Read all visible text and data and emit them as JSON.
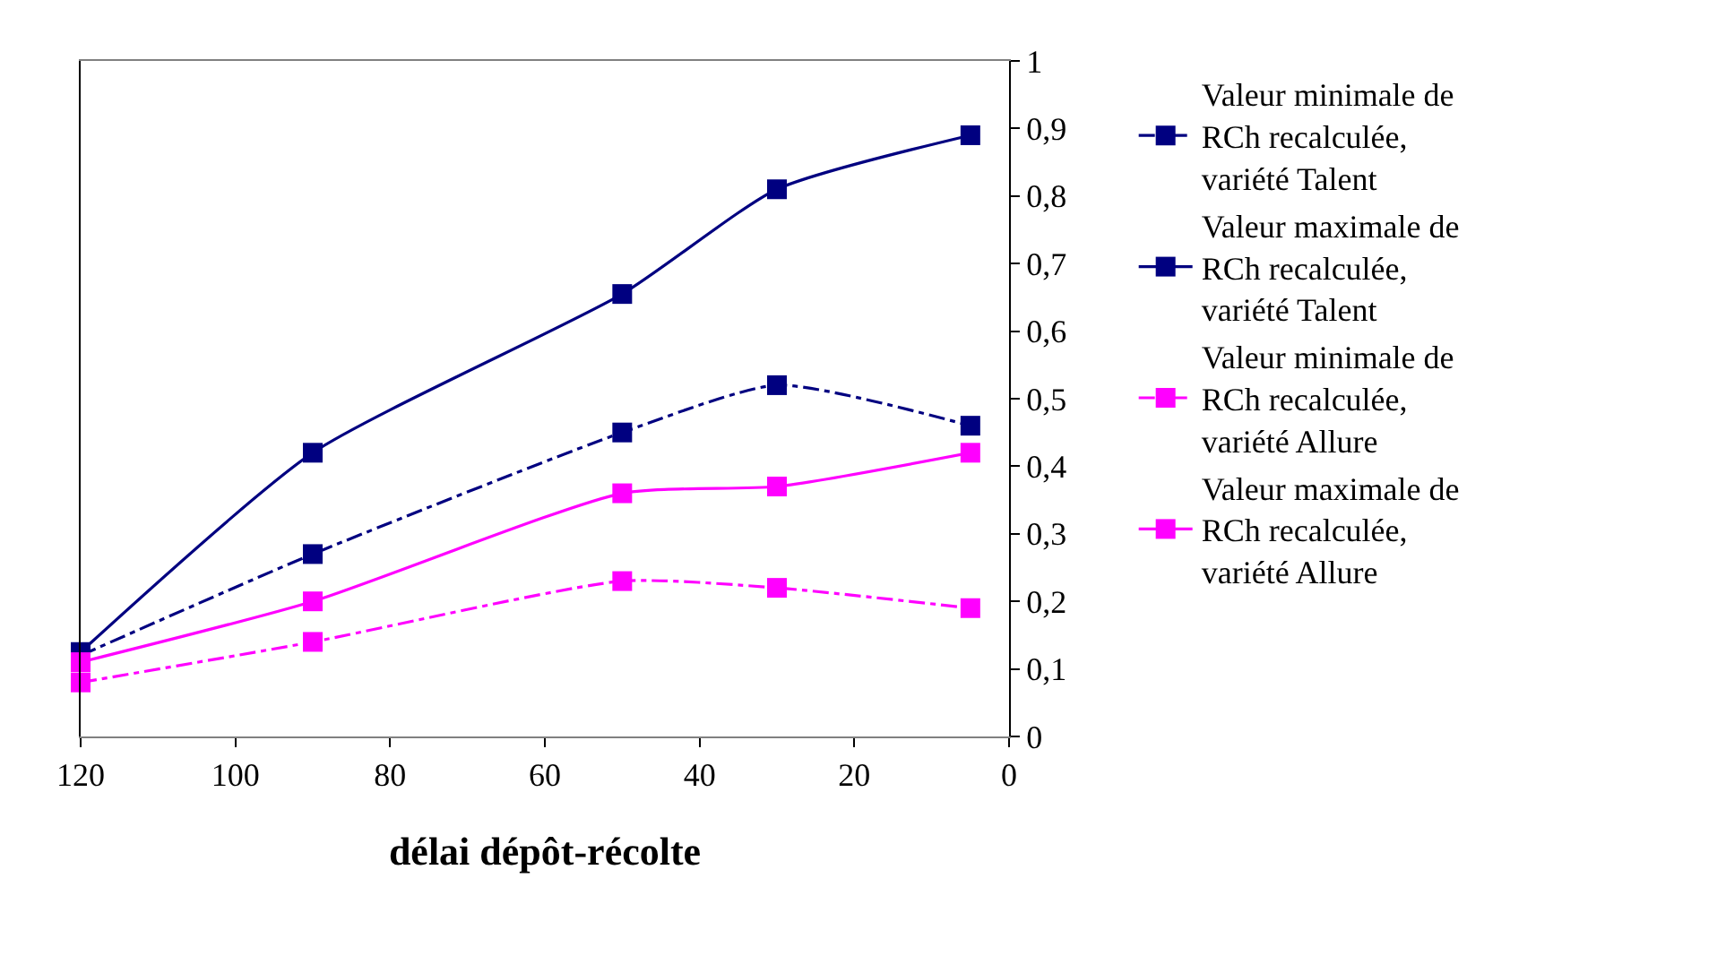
{
  "chart_data": {
    "type": "line",
    "xlabel": "délai dépôt-récolte",
    "x": [
      120,
      90,
      50,
      30,
      5
    ],
    "series": [
      {
        "name": "Valeur minimale de RCh recalculée, variété Talent",
        "color": "#000080",
        "line_style": "dashed",
        "values": [
          0.12,
          0.27,
          0.45,
          0.52,
          0.46
        ]
      },
      {
        "name": "Valeur maximale de RCh recalculée, variété Talent",
        "color": "#000080",
        "line_style": "solid",
        "values": [
          0.125,
          0.42,
          0.655,
          0.81,
          0.89
        ]
      },
      {
        "name": "Valeur minimale de RCh recalculée, variété Allure",
        "color": "#ff00ff",
        "line_style": "dashed",
        "values": [
          0.08,
          0.14,
          0.23,
          0.22,
          0.19
        ]
      },
      {
        "name": "Valeur maximale de RCh recalculée, variété Allure",
        "color": "#ff00ff",
        "line_style": "solid",
        "values": [
          0.11,
          0.2,
          0.36,
          0.37,
          0.42
        ]
      }
    ],
    "xlim": [
      120,
      0
    ],
    "xticks": [
      120,
      100,
      80,
      60,
      40,
      20,
      0
    ],
    "ylim": [
      0,
      1
    ],
    "yticks": [
      0,
      {
        "value": 0.1,
        "label": "0,1"
      },
      {
        "value": 0.2,
        "label": "0,2"
      },
      {
        "value": 0.3,
        "label": "0,3"
      },
      {
        "value": 0.4,
        "label": "0,4"
      },
      {
        "value": 0.5,
        "label": "0,5"
      },
      {
        "value": 0.6,
        "label": "0,6"
      },
      {
        "value": 0.7,
        "label": "0,7"
      },
      {
        "value": 0.8,
        "label": "0,8"
      },
      {
        "value": 0.9,
        "label": "0,9"
      },
      1
    ],
    "legend": "right",
    "marker": "square"
  }
}
